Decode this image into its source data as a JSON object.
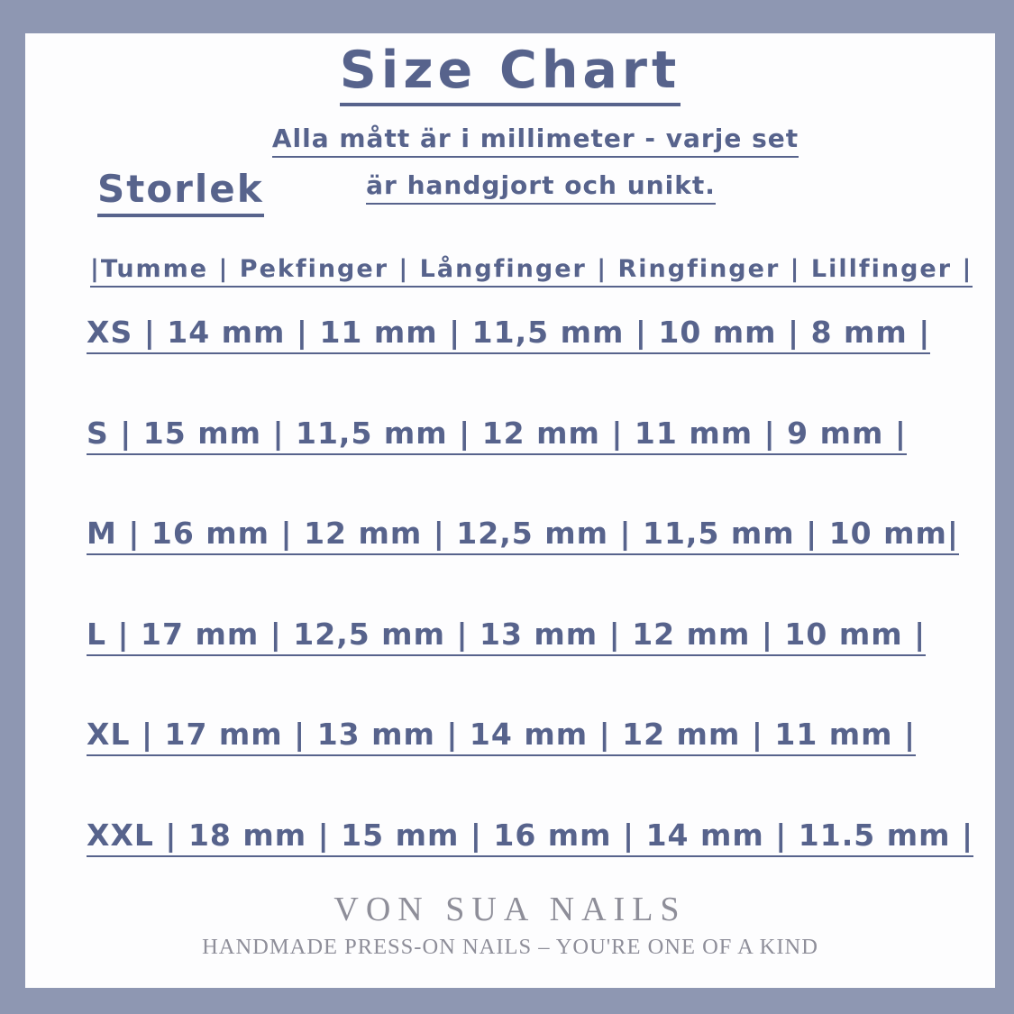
{
  "title": "Size Chart",
  "subtitle": {
    "line1": "Alla mått är i millimeter - varje set",
    "line2": "är handgjort och unikt."
  },
  "section_heading": "Storlek",
  "table": {
    "unit": "mm",
    "header": {
      "text": "|Tumme | Pekfinger | Långfinger | Ringfinger | Lillfinger |",
      "columns": [
        "Tumme",
        "Pekfinger",
        "Långfinger",
        "Ringfinger",
        "Lillfinger"
      ]
    },
    "rows": [
      {
        "size": "XS",
        "values": [
          "14 mm",
          "11 mm",
          "11,5 mm",
          "10 mm",
          "8 mm"
        ],
        "text": "XS | 14 mm | 11 mm | 11,5 mm | 10 mm | 8 mm |"
      },
      {
        "size": "S",
        "values": [
          "15 mm",
          "11,5 mm",
          "12 mm",
          "11 mm",
          "9 mm"
        ],
        "text": "S | 15 mm | 11,5 mm | 12 mm | 11 mm | 9 mm |"
      },
      {
        "size": "M",
        "values": [
          "16 mm",
          "12 mm",
          "12,5 mm",
          "11,5 mm",
          "10 mm"
        ],
        "text": "M | 16 mm | 12 mm | 12,5 mm | 11,5 mm | 10 mm|"
      },
      {
        "size": "L",
        "values": [
          "17 mm",
          "12,5 mm",
          "13 mm",
          "12 mm",
          "10 mm"
        ],
        "text": "L | 17 mm | 12,5 mm | 13 mm | 12 mm | 10 mm |"
      },
      {
        "size": "XL",
        "values": [
          "17 mm",
          "13 mm",
          "14 mm",
          "12 mm",
          "11 mm"
        ],
        "text": "XL | 17 mm | 13 mm | 14 mm | 12 mm | 11 mm |"
      },
      {
        "size": "XXL",
        "values": [
          "18 mm",
          "15 mm",
          "16 mm",
          "14 mm",
          "11.5 mm"
        ],
        "text": "XXL | 18 mm | 15 mm | 16 mm | 14 mm | 11.5 mm |"
      }
    ]
  },
  "footer": {
    "brand": "VON SUA NAILS",
    "tagline": "HANDMADE PRESS-ON NAILS – YOU'RE ONE OF A KIND"
  },
  "colors": {
    "text": "#57638c",
    "footer_text": "#8e8e99",
    "card_bg": "#fdfdfe"
  }
}
